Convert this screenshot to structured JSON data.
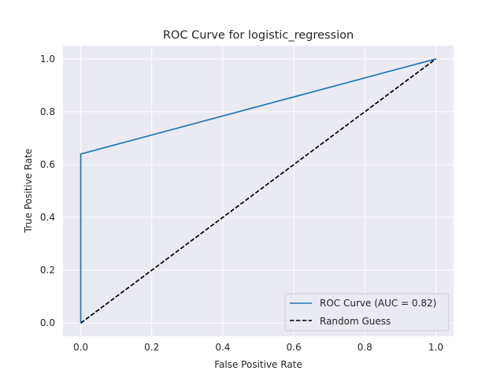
{
  "chart_data": {
    "type": "line",
    "title": "ROC Curve for logistic_regression",
    "xlabel": "False Positive Rate",
    "ylabel": "True Positive Rate",
    "xlim": [
      -0.05,
      1.05
    ],
    "ylim": [
      -0.05,
      1.05
    ],
    "xticks": [
      0.0,
      0.2,
      0.4,
      0.6,
      0.8,
      1.0
    ],
    "yticks": [
      0.0,
      0.2,
      0.4,
      0.6,
      0.8,
      1.0
    ],
    "xtick_labels": [
      "0.0",
      "0.2",
      "0.4",
      "0.6",
      "0.8",
      "1.0"
    ],
    "ytick_labels": [
      "0.0",
      "0.2",
      "0.4",
      "0.6",
      "0.8",
      "1.0"
    ],
    "grid": true,
    "legend_position": "bottom-right",
    "series": [
      {
        "name": "ROC Curve (AUC = 0.82)",
        "color": "#1f77b4",
        "style": "solid",
        "x": [
          0.0,
          0.0,
          1.0
        ],
        "y": [
          0.0,
          0.64,
          1.0
        ]
      },
      {
        "name": "Random Guess",
        "color": "#000000",
        "style": "dashed",
        "x": [
          0.0,
          1.0
        ],
        "y": [
          0.0,
          1.0
        ]
      }
    ],
    "colors": {
      "plot_background": "#eaeaf2",
      "grid": "#ffffff"
    }
  }
}
